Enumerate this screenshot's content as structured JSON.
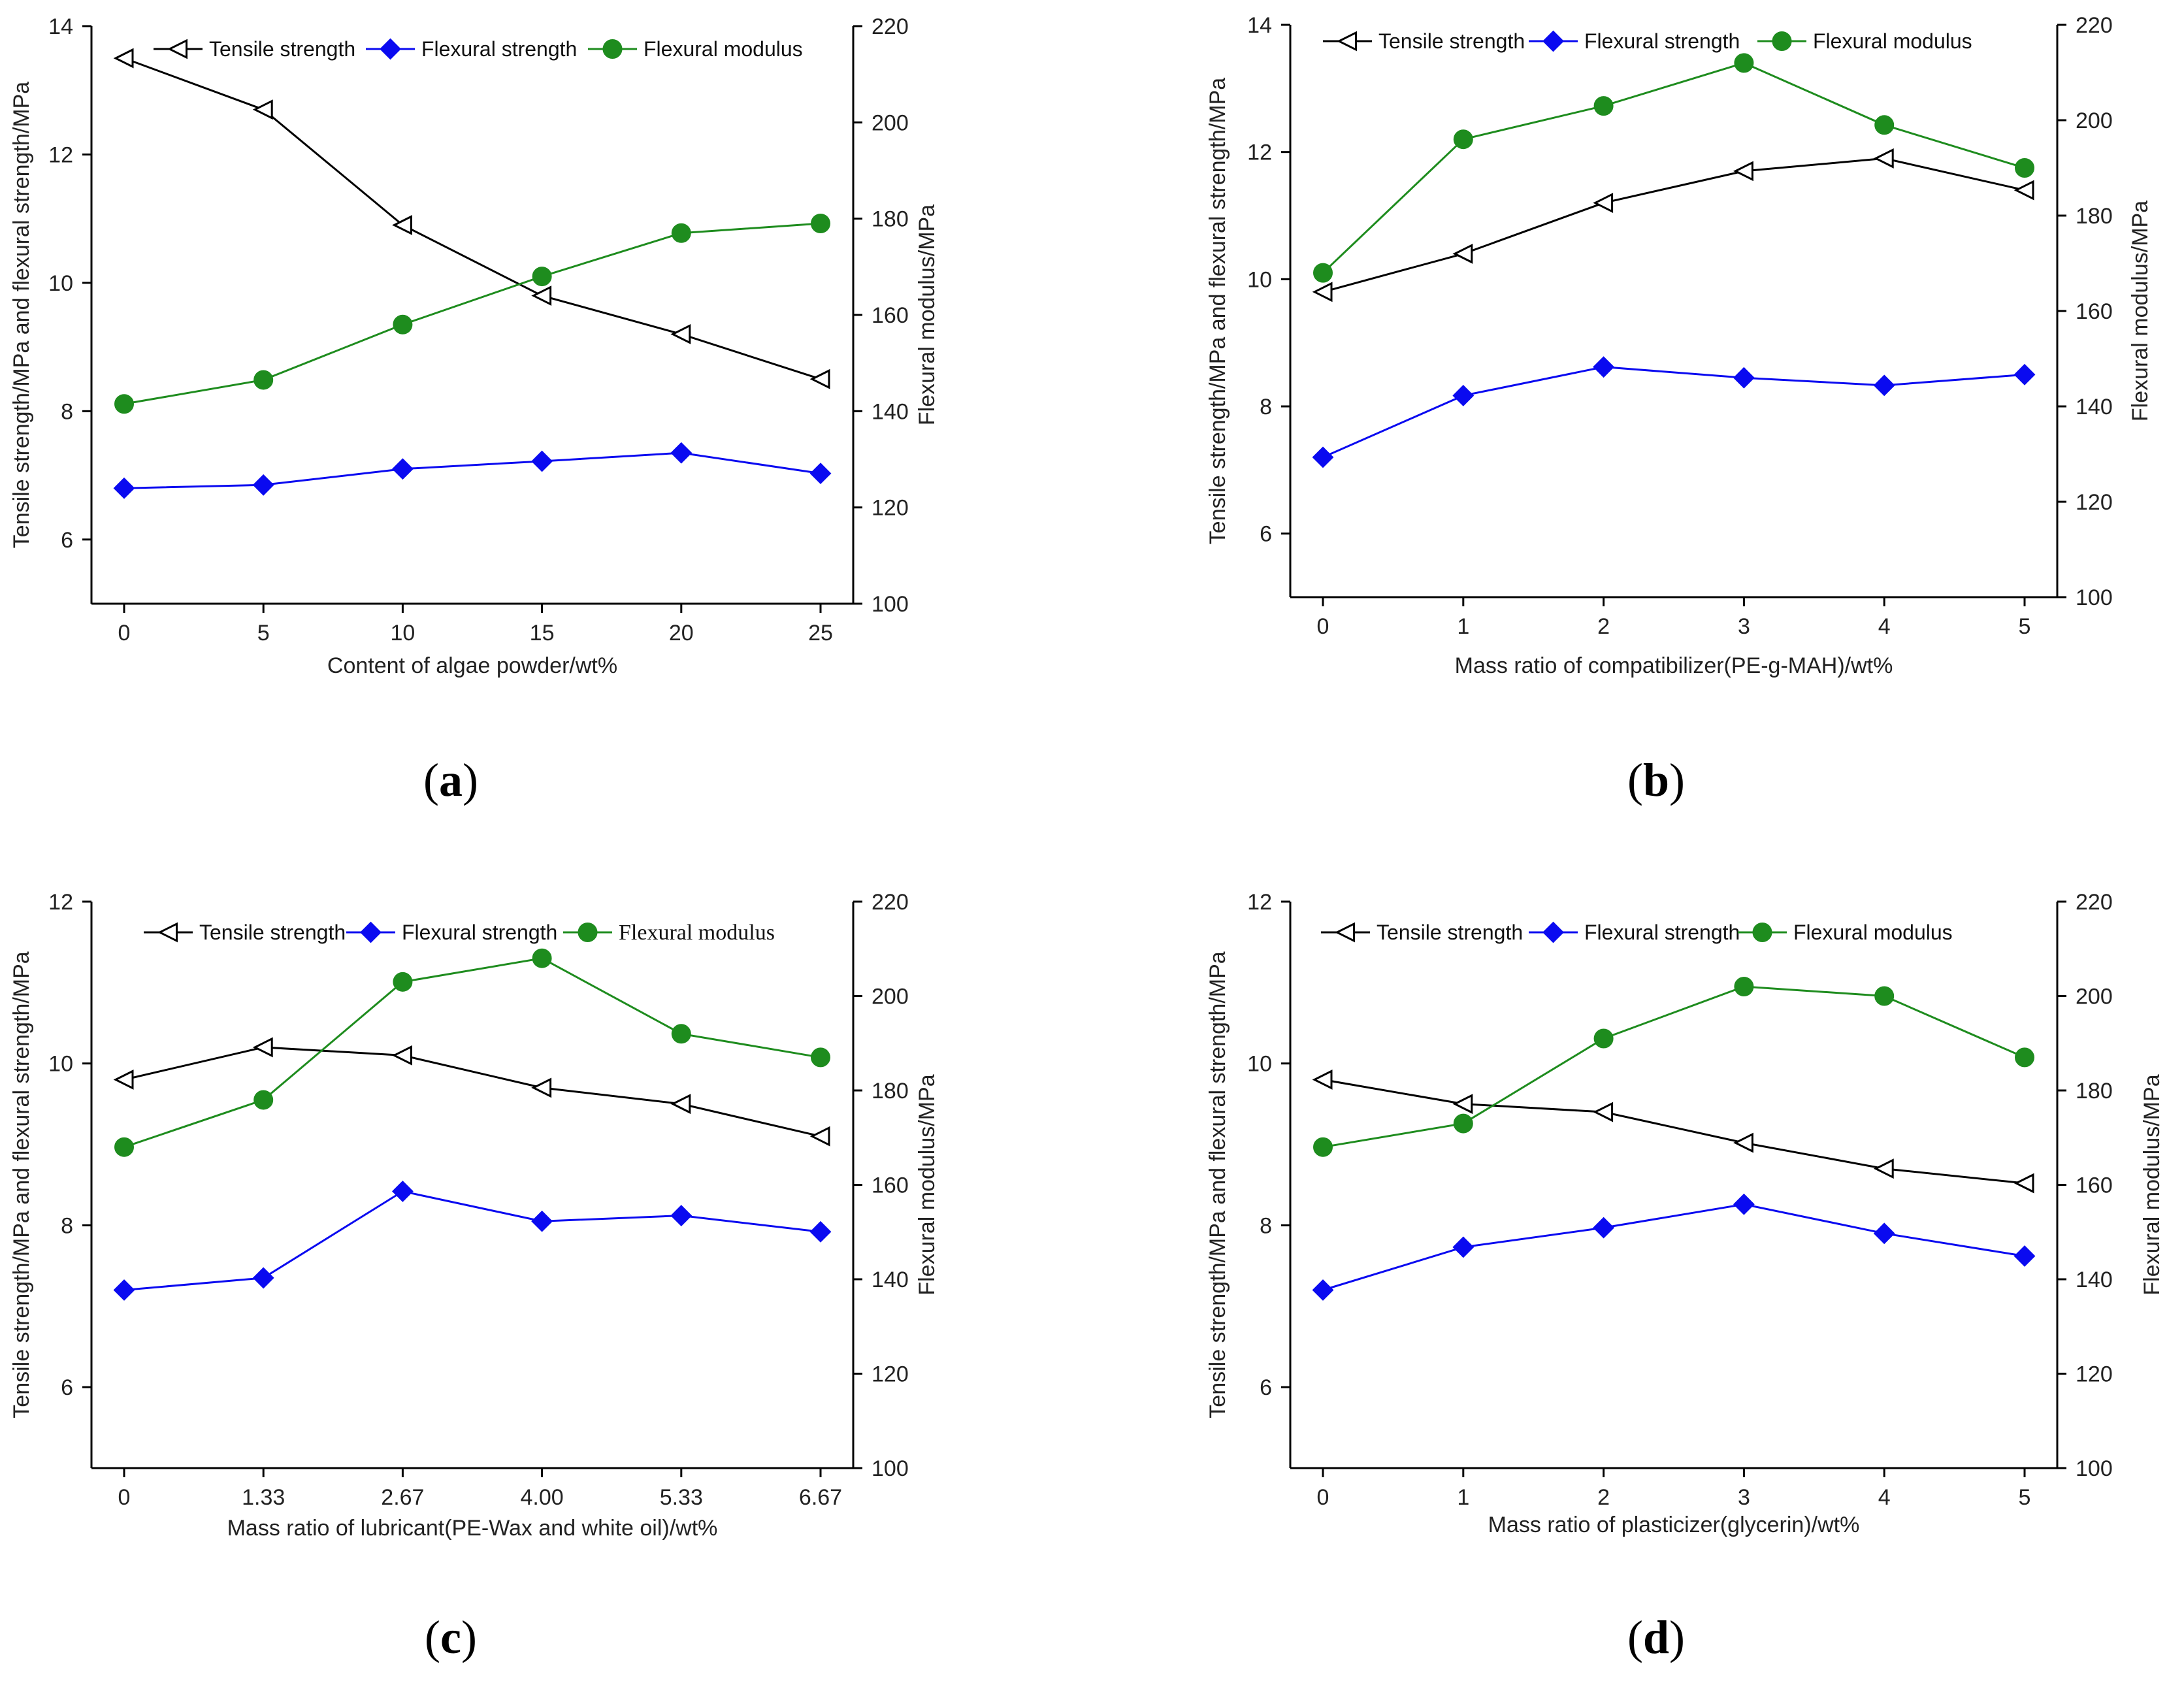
{
  "colors": {
    "tensile": "#000000",
    "flexural_strength": "#0a0af0",
    "flexural_modulus": "#1e8c1e"
  },
  "chart_data": [
    {
      "type": "line",
      "panel_label": "a",
      "categories": [
        "0",
        "5",
        "10",
        "15",
        "20",
        "25"
      ],
      "xlabel": "Content of algae powder/wt%",
      "ylabel": "Tensile strength/MPa and flexural strength/MPa",
      "y2label": "Flexural modulus/MPa",
      "ylim": [
        5,
        14
      ],
      "yticks": [
        "6",
        "8",
        "10",
        "12",
        "14"
      ],
      "y2lim": [
        100,
        220
      ],
      "y2ticks": [
        "100",
        "120",
        "140",
        "160",
        "180",
        "200",
        "220"
      ],
      "legend_style": "sans",
      "series": [
        {
          "name": "Tensile strength",
          "axis": "left",
          "marker": "triangle-left",
          "values": [
            13.5,
            12.7,
            10.9,
            9.8,
            9.2,
            8.5
          ]
        },
        {
          "name": "Flexural strength",
          "axis": "left",
          "marker": "diamond",
          "values": [
            6.8,
            6.85,
            7.1,
            7.22,
            7.35,
            7.03
          ]
        },
        {
          "name": "Flexural modulus",
          "axis": "right",
          "marker": "circle",
          "values": [
            141.5,
            146.5,
            158,
            168,
            177,
            179
          ]
        }
      ]
    },
    {
      "type": "line",
      "panel_label": "b",
      "categories": [
        "0",
        "1",
        "2",
        "3",
        "4",
        "5"
      ],
      "xlabel": "Mass ratio of compatibilizer(PE-g-MAH)/wt%",
      "ylabel": "Tensile strength/MPa and flexural strength/MPa",
      "y2label": "Flexural modulus/MPa",
      "ylim": [
        5,
        14
      ],
      "yticks": [
        "6",
        "8",
        "10",
        "12",
        "14"
      ],
      "y2lim": [
        100,
        220
      ],
      "y2ticks": [
        "100",
        "120",
        "140",
        "160",
        "180",
        "200",
        "220"
      ],
      "legend_style": "sans",
      "series": [
        {
          "name": "Tensile strength",
          "axis": "left",
          "marker": "triangle-left",
          "values": [
            9.8,
            10.4,
            11.2,
            11.7,
            11.9,
            11.4
          ]
        },
        {
          "name": "Flexural strength",
          "axis": "left",
          "marker": "diamond",
          "values": [
            7.2,
            8.17,
            8.62,
            8.45,
            8.33,
            8.5
          ]
        },
        {
          "name": "Flexural modulus",
          "axis": "right",
          "marker": "circle",
          "values": [
            168,
            196,
            203,
            212,
            199,
            190
          ]
        }
      ]
    },
    {
      "type": "line",
      "panel_label": "c",
      "categories": [
        "0",
        "1.33",
        "2.67",
        "4.00",
        "5.33",
        "6.67"
      ],
      "xlabel": "Mass ratio of lubricant(PE-Wax and white oil)/wt%",
      "ylabel": "Tensile strength/MPa and flexural strength/MPa",
      "y2label": "Flexural modulus/MPa",
      "ylim": [
        5,
        12
      ],
      "yticks": [
        "6",
        "8",
        "10",
        "12"
      ],
      "y2lim": [
        100,
        220
      ],
      "y2ticks": [
        "100",
        "120",
        "140",
        "160",
        "180",
        "200",
        "220"
      ],
      "legend_style": "mixed",
      "series": [
        {
          "name": "Tensile strength",
          "axis": "left",
          "marker": "triangle-left",
          "values": [
            9.8,
            10.2,
            10.1,
            9.7,
            9.5,
            9.1
          ]
        },
        {
          "name": "Flexural strength",
          "axis": "left",
          "marker": "diamond",
          "values": [
            7.2,
            7.35,
            8.42,
            8.05,
            8.12,
            7.92
          ]
        },
        {
          "name": "Flexural modulus",
          "axis": "right",
          "marker": "circle",
          "values": [
            168,
            178,
            203,
            208,
            192,
            187
          ]
        }
      ]
    },
    {
      "type": "line",
      "panel_label": "d",
      "categories": [
        "0",
        "1",
        "2",
        "3",
        "4",
        "5"
      ],
      "xlabel": "Mass ratio of plasticizer(glycerin)/wt%",
      "ylabel": "Tensile strength/MPa and flexural strength/MPa",
      "y2label": "Flexural modulus/MPa",
      "ylim": [
        5,
        12
      ],
      "yticks": [
        "6",
        "8",
        "10",
        "12"
      ],
      "y2lim": [
        100,
        220
      ],
      "y2ticks": [
        "100",
        "120",
        "140",
        "160",
        "180",
        "200",
        "220"
      ],
      "legend_style": "sans",
      "series": [
        {
          "name": "Tensile strength",
          "axis": "left",
          "marker": "triangle-left",
          "values": [
            9.8,
            9.5,
            9.4,
            9.02,
            8.7,
            8.52
          ]
        },
        {
          "name": "Flexural strength",
          "axis": "left",
          "marker": "diamond",
          "values": [
            7.2,
            7.73,
            7.97,
            8.26,
            7.9,
            7.62
          ]
        },
        {
          "name": "Flexural modulus",
          "axis": "right",
          "marker": "circle",
          "values": [
            168,
            173,
            191,
            202,
            200,
            187
          ]
        }
      ]
    }
  ]
}
